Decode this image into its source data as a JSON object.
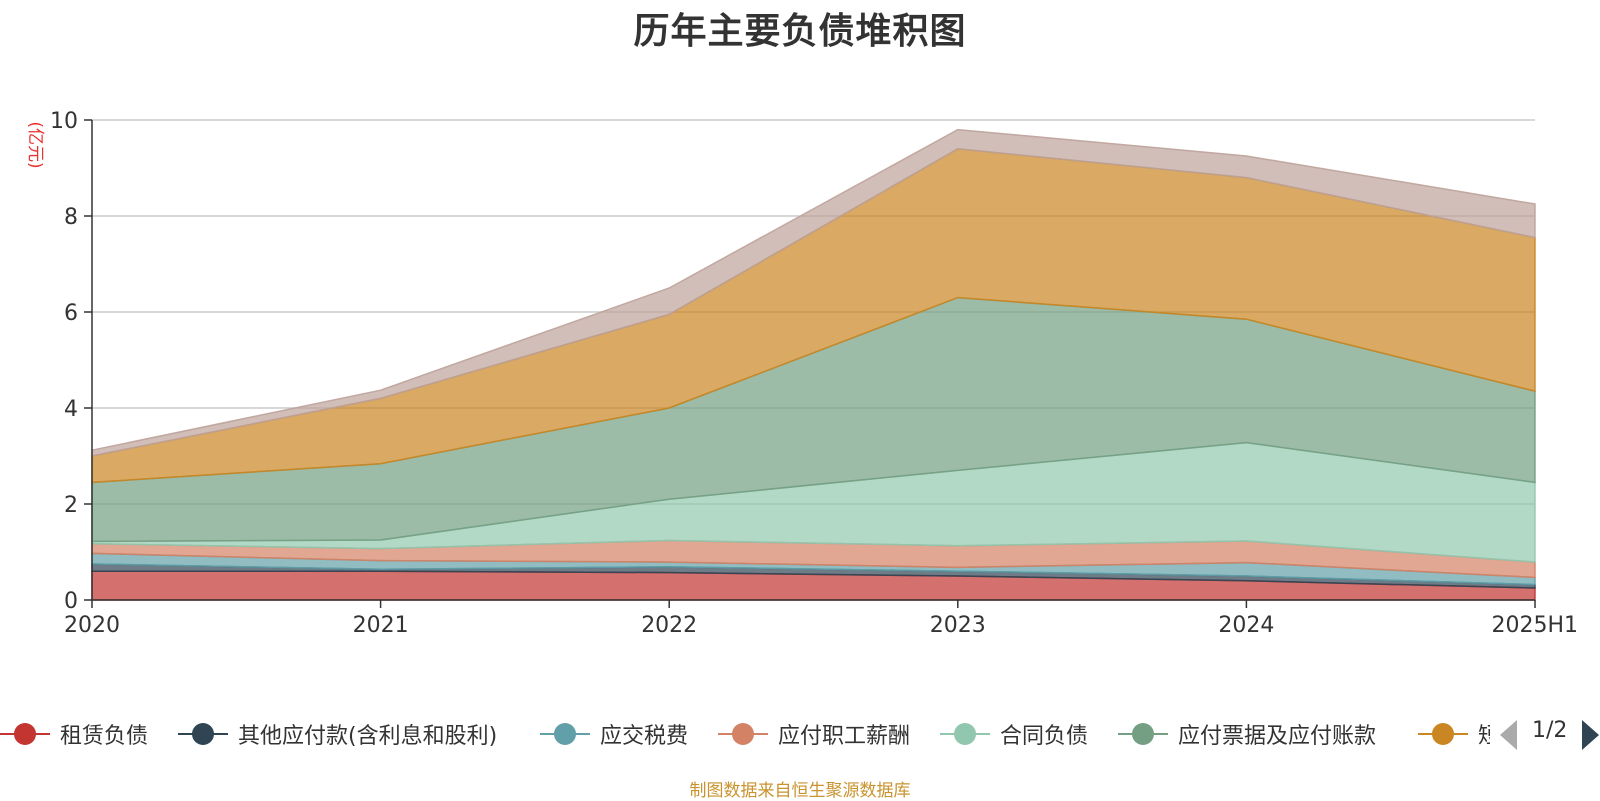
{
  "chart_data": {
    "type": "area",
    "title": "历年主要负债堆积图",
    "ylabel": "(亿元)",
    "xlabel": "",
    "stacked": true,
    "x": [
      "2020",
      "2021",
      "2022",
      "2023",
      "2024",
      "2025H1"
    ],
    "ylim": [
      0,
      10
    ],
    "yticks": [
      0,
      2,
      4,
      6,
      8,
      10
    ],
    "grid": true,
    "series": [
      {
        "name": "租赁负债",
        "color": "#c23531",
        "values": [
          0.6,
          0.6,
          0.57,
          0.5,
          0.4,
          0.25
        ]
      },
      {
        "name": "其他应付款(含利息和股利)",
        "color": "#2f4554",
        "values": [
          0.15,
          0.04,
          0.12,
          0.1,
          0.1,
          0.07
        ]
      },
      {
        "name": "应交税费",
        "color": "#61a0a8",
        "values": [
          0.22,
          0.18,
          0.1,
          0.08,
          0.28,
          0.15
        ]
      },
      {
        "name": "应付职工薪酬",
        "color": "#d48265",
        "values": [
          0.2,
          0.25,
          0.45,
          0.45,
          0.45,
          0.32
        ]
      },
      {
        "name": "合同负债",
        "color": "#91c7ae",
        "values": [
          0.05,
          0.18,
          0.86,
          1.57,
          2.05,
          1.66
        ]
      },
      {
        "name": "应付票据及应付账款",
        "color": "#749f83",
        "values": [
          1.23,
          1.59,
          1.9,
          3.6,
          2.57,
          1.9
        ]
      },
      {
        "name": "短期借款",
        "color": "#ca8622",
        "values": [
          0.55,
          1.36,
          1.95,
          3.1,
          2.95,
          3.2
        ]
      },
      {
        "name": "",
        "color": "#bda29a",
        "values": [
          0.12,
          0.17,
          0.55,
          0.4,
          0.45,
          0.7
        ]
      }
    ],
    "legend_position": "bottom"
  },
  "legend": {
    "page_text": "1/2"
  },
  "source_note": "制图数据来自恒生聚源数据库"
}
